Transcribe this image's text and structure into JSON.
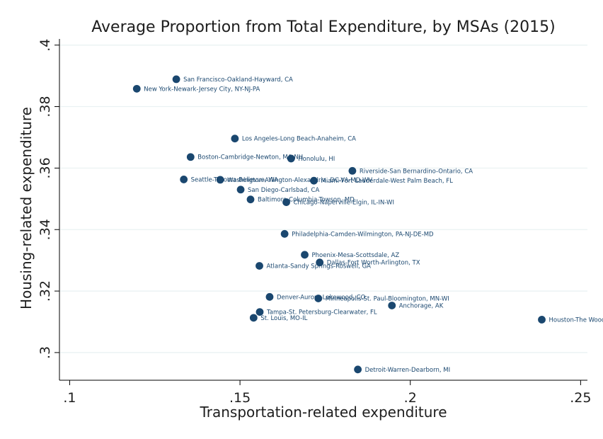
{
  "chart_data": {
    "type": "scatter",
    "title": "Average Proportion from Total Expenditure, by MSAs (2015)",
    "xlabel": "Transportation-related expenditure",
    "ylabel": "Housing-related expenditure",
    "xlim": [
      0.097,
      0.252
    ],
    "ylim": [
      0.291,
      0.402
    ],
    "x_ticks": [
      0.1,
      0.15,
      0.2,
      0.25
    ],
    "x_tick_labels": [
      ".1",
      ".15",
      ".2",
      ".25"
    ],
    "y_ticks": [
      0.3,
      0.32,
      0.34,
      0.36,
      0.38,
      0.4
    ],
    "y_tick_labels": [
      ".3",
      ".32",
      ".34",
      ".36",
      ".38",
      ".4"
    ],
    "grid": "horizontal",
    "legend": "none",
    "marker_color": "#1a476f",
    "background": "#ffffff",
    "gridline_color": "#eaf2f3",
    "points": [
      {
        "label": "San Francisco-Oakland-Hayward, CA",
        "x": 0.1313,
        "y": 0.3889
      },
      {
        "label": "New York-Newark-Jersey City, NY-NJ-PA",
        "x": 0.1197,
        "y": 0.3858
      },
      {
        "label": "Los Angeles-Long Beach-Anaheim, CA",
        "x": 0.1485,
        "y": 0.3696
      },
      {
        "label": "Boston-Cambridge-Newton, MA-NH",
        "x": 0.1355,
        "y": 0.3636
      },
      {
        "label": "Honolulu, HI",
        "x": 0.165,
        "y": 0.3631
      },
      {
        "label": "Riverside-San Bernardino-Ontario, CA",
        "x": 0.183,
        "y": 0.3591
      },
      {
        "label": "Seattle-Tacoma-Bellevue, WA",
        "x": 0.1335,
        "y": 0.3563
      },
      {
        "label": "Washington-Arlington-Alexandria, DC-VA-MD-WV",
        "x": 0.1442,
        "y": 0.3562
      },
      {
        "label": "Miami-Fort Lauderdale-West Palm Beach, FL",
        "x": 0.1717,
        "y": 0.3559
      },
      {
        "label": "San Diego-Carlsbad, CA",
        "x": 0.1502,
        "y": 0.353
      },
      {
        "label": "Baltimore-Columbia-Towson, MD",
        "x": 0.1531,
        "y": 0.3498
      },
      {
        "label": "Chicago-Naperville-Elgin, IL-IN-WI",
        "x": 0.1636,
        "y": 0.3489
      },
      {
        "label": "Philadelphia-Camden-Wilmington, PA-NJ-DE-MD",
        "x": 0.1631,
        "y": 0.3386
      },
      {
        "label": "Phoenix-Mesa-Scottsdale, AZ",
        "x": 0.169,
        "y": 0.3318
      },
      {
        "label": "Dallas-Fort Worth-Arlington, TX",
        "x": 0.1734,
        "y": 0.3293
      },
      {
        "label": "Atlanta-Sandy Springs-Roswell, GA",
        "x": 0.1557,
        "y": 0.3282
      },
      {
        "label": "Denver-Aurora-Lakewood, CO",
        "x": 0.1587,
        "y": 0.3181
      },
      {
        "label": "Minneapolis-St. Paul-Bloomington, MN-WI",
        "x": 0.173,
        "y": 0.3176
      },
      {
        "label": "Anchorage, AK",
        "x": 0.1946,
        "y": 0.3153
      },
      {
        "label": "Tampa-St. Petersburg-Clearwater, FL",
        "x": 0.1558,
        "y": 0.3132
      },
      {
        "label": "St. Louis, MO-IL",
        "x": 0.154,
        "y": 0.3113
      },
      {
        "label": "Houston-The Woodlands-Sugar Land, TX",
        "x": 0.2386,
        "y": 0.3107
      },
      {
        "label": "Detroit-Warren-Dearborn, MI",
        "x": 0.1846,
        "y": 0.2945
      }
    ]
  }
}
